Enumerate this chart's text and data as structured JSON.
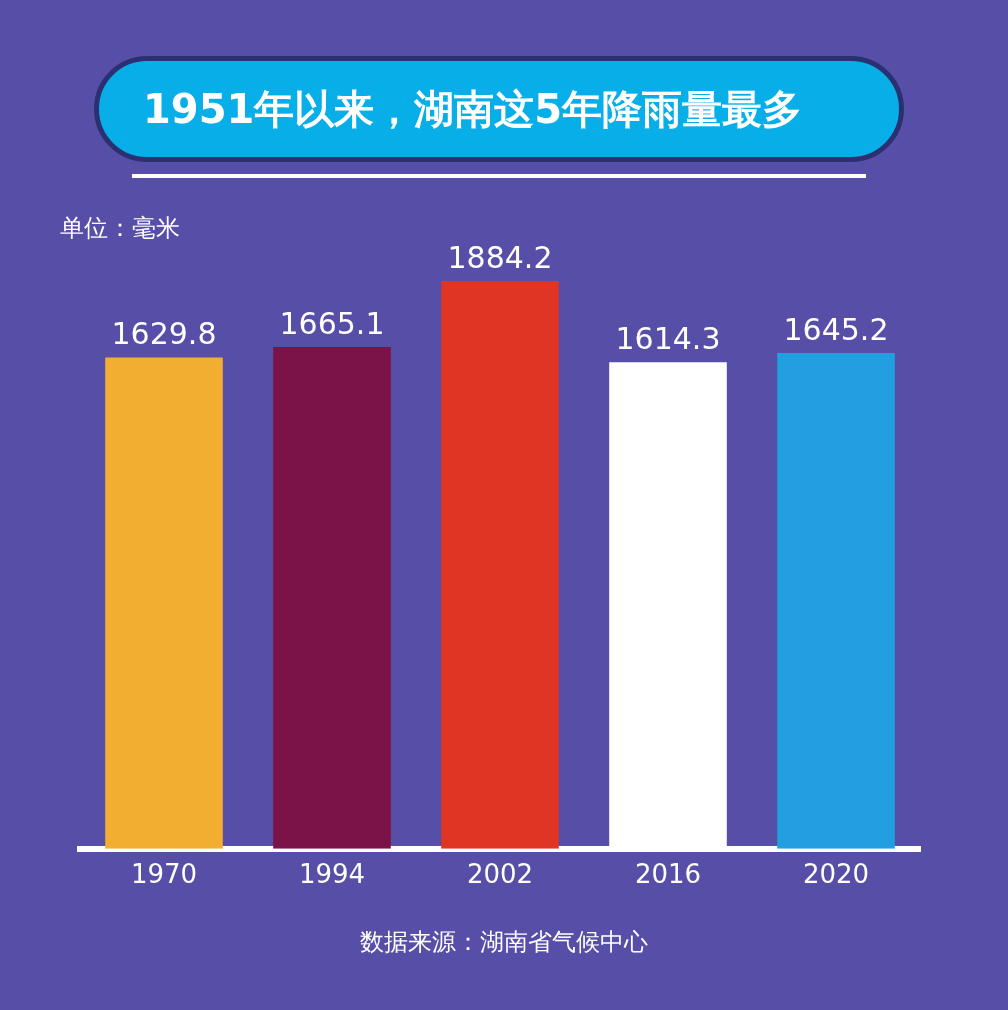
{
  "chart_data": {
    "type": "bar",
    "title": "1951年以来，湖南这5年降雨量最多",
    "categories": [
      "1970",
      "1994",
      "2002",
      "2016",
      "2020"
    ],
    "values": [
      1629.8,
      1665.1,
      1884.2,
      1614.3,
      1645.2
    ],
    "colors": [
      "#f2ae30",
      "#7b1248",
      "#e03424",
      "#ffffff",
      "#219fe0"
    ],
    "data_labels": true,
    "grid": false,
    "legend": false,
    "annotations": [
      "单位：毫米",
      "数据来源：湖南省气候中心"
    ]
  }
}
